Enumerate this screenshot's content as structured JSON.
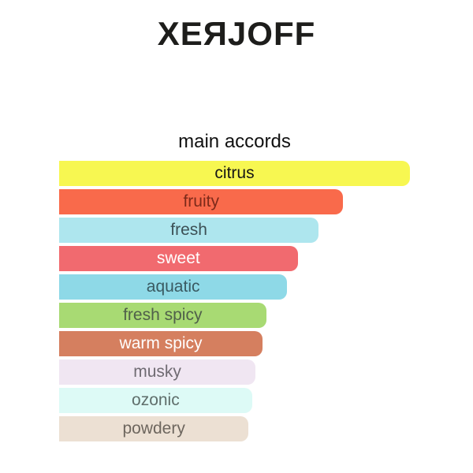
{
  "logo": {
    "text": "XEЯJOFF"
  },
  "chart_data": {
    "type": "bar",
    "orientation": "horizontal",
    "title": "main accords",
    "xlabel": "",
    "ylabel": "",
    "grid": false,
    "legend": false,
    "categories": [
      "citrus",
      "fruity",
      "fresh",
      "sweet",
      "aquatic",
      "fresh spicy",
      "warm spicy",
      "musky",
      "ozonic",
      "powdery"
    ],
    "values": [
      100,
      81,
      74,
      68,
      65,
      59,
      58,
      56,
      55,
      54
    ],
    "value_units": "percent of longest bar",
    "bars": [
      {
        "label": "citrus",
        "width_pct": 100,
        "color": "#F7F751",
        "text_color": "#151515"
      },
      {
        "label": "fruity",
        "width_pct": 81,
        "color": "#F96A4B",
        "text_color": "#7D2A1A"
      },
      {
        "label": "fresh",
        "width_pct": 74,
        "color": "#AEE6EE",
        "text_color": "#3C5055"
      },
      {
        "label": "sweet",
        "width_pct": 68,
        "color": "#F16A6F",
        "text_color": "#FFFFFF"
      },
      {
        "label": "aquatic",
        "width_pct": 65,
        "color": "#8ED9E7",
        "text_color": "#3A5A62"
      },
      {
        "label": "fresh spicy",
        "width_pct": 59,
        "color": "#A8DA73",
        "text_color": "#50604A"
      },
      {
        "label": "warm spicy",
        "width_pct": 58,
        "color": "#D57F5F",
        "text_color": "#FFFFFF"
      },
      {
        "label": "musky",
        "width_pct": 56,
        "color": "#F0E6F2",
        "text_color": "#6F6B72"
      },
      {
        "label": "ozonic",
        "width_pct": 55,
        "color": "#DDFAF6",
        "text_color": "#5F6E6B"
      },
      {
        "label": "powdery",
        "width_pct": 54,
        "color": "#ECE0D3",
        "text_color": "#6D665E"
      }
    ]
  }
}
